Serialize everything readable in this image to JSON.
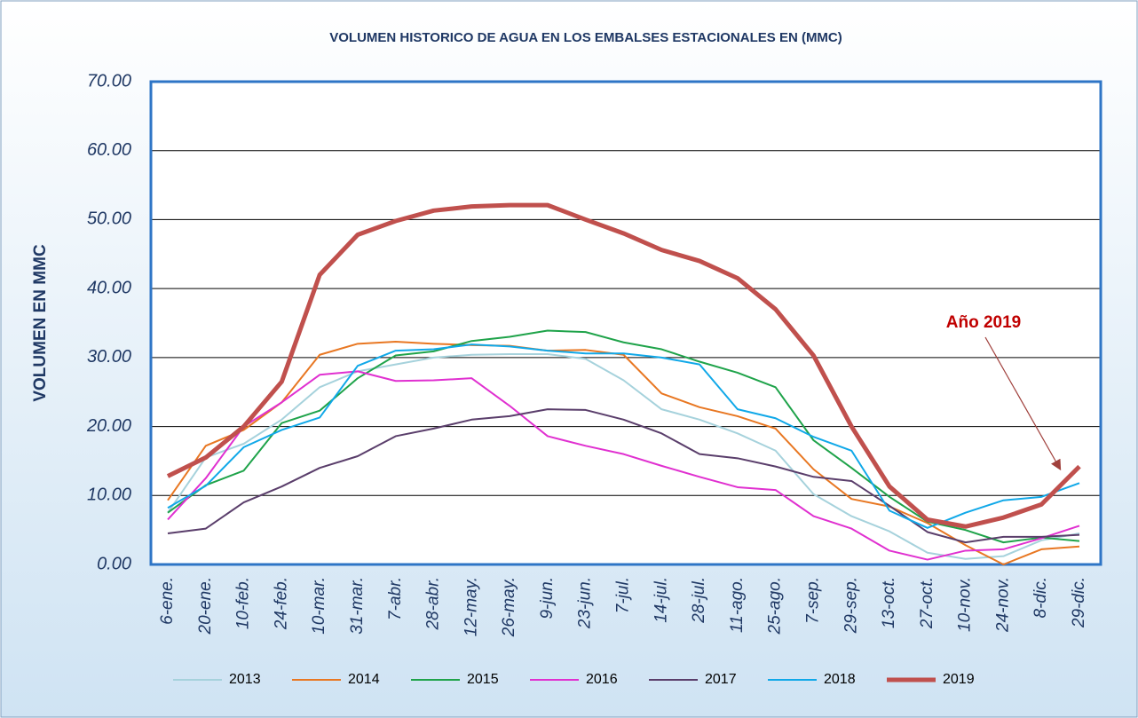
{
  "chart_data": {
    "type": "line",
    "title": "VOLUMEN HISTORICO DE AGUA EN LOS EMBALSES ESTACIONALES EN (MMC)",
    "y_label": "VOLUMEN EN MMC",
    "annotation": "Año 2019",
    "categories": [
      "6-ene.",
      "20-ene.",
      "10-feb.",
      "24-feb.",
      "10-mar.",
      "31-mar.",
      "7-abr.",
      "28-abr.",
      "12-may.",
      "26-may.",
      "9-jun.",
      "23-jun.",
      "7-jul.",
      "14-jul.",
      "28-jul.",
      "11-ago.",
      "25-ago.",
      "7-sep.",
      "29-sep.",
      "13-oct.",
      "27-oct.",
      "10-nov.",
      "24-nov.",
      "8-dic.",
      "29-dic."
    ],
    "ylim": [
      0,
      70
    ],
    "yticks": [
      {
        "value": 0,
        "label": "0.00"
      },
      {
        "value": 10,
        "label": "10.00"
      },
      {
        "value": 20,
        "label": "20.00"
      },
      {
        "value": 30,
        "label": "30.00"
      },
      {
        "value": 40,
        "label": "40.00"
      },
      {
        "value": 50,
        "label": "50.00"
      },
      {
        "value": 60,
        "label": "60.00"
      },
      {
        "value": 70,
        "label": "70.00"
      }
    ],
    "grid": true,
    "legend": "bottom",
    "series": [
      {
        "name": "2013",
        "color": "#a6d2dc",
        "line_width": 2,
        "values": [
          7.5,
          15.5,
          17.5,
          21,
          25.7,
          28,
          29,
          30,
          30.4,
          30.5,
          30.5,
          29.8,
          26.7,
          22.5,
          21,
          19,
          16.5,
          10.2,
          7,
          4.8,
          1.7,
          0.8,
          1.2,
          3.5,
          4.5
        ]
      },
      {
        "name": "2014",
        "color": "#e87722",
        "line_width": 2,
        "values": [
          9.3,
          17.2,
          19.5,
          23.5,
          30.4,
          32,
          32.3,
          32,
          31.8,
          31.7,
          31,
          31.1,
          30.4,
          24.8,
          22.8,
          21.5,
          19.7,
          13.8,
          9.5,
          8.4,
          6,
          2.8,
          0,
          2.2,
          2.6
        ]
      },
      {
        "name": "2015",
        "color": "#1fa34a",
        "line_width": 2,
        "values": [
          7.5,
          11.5,
          13.6,
          20.5,
          22.3,
          27,
          30.3,
          30.9,
          32.4,
          33,
          33.9,
          33.7,
          32.2,
          31.2,
          29.4,
          27.8,
          25.7,
          18,
          14,
          9.8,
          6.2,
          5,
          3.2,
          3.9,
          3.4
        ]
      },
      {
        "name": "2016",
        "color": "#e030d0",
        "line_width": 2,
        "values": [
          6.5,
          12.5,
          20,
          23.5,
          27.5,
          28,
          26.6,
          26.7,
          27,
          23,
          18.6,
          17.2,
          16,
          14.3,
          12.7,
          11.2,
          10.8,
          7,
          5.2,
          2,
          0.7,
          2,
          2.2,
          3.8,
          5.6
        ]
      },
      {
        "name": "2017",
        "color": "#5a3e6b",
        "line_width": 2,
        "values": [
          4.5,
          5.2,
          9,
          11.3,
          14,
          15.7,
          18.6,
          19.7,
          21,
          21.5,
          22.5,
          22.4,
          21,
          19,
          16,
          15.4,
          14.2,
          12.7,
          12.1,
          8.5,
          4.7,
          3.2,
          4,
          4,
          4.3
        ]
      },
      {
        "name": "2018",
        "color": "#10a8e8",
        "line_width": 2,
        "values": [
          8.2,
          11.4,
          17,
          19.5,
          21.3,
          28.8,
          31,
          31.2,
          31.9,
          31.6,
          31,
          30.6,
          30.6,
          30,
          29,
          22.5,
          21.2,
          18.5,
          16.5,
          7.8,
          5.3,
          7.5,
          9.3,
          9.8,
          11.8
        ]
      },
      {
        "name": "2019",
        "color": "#c0504d",
        "line_width": 5,
        "values": [
          12.8,
          15.5,
          20,
          26.5,
          42,
          47.8,
          49.8,
          51.3,
          51.9,
          52.1,
          52.1,
          50,
          48,
          45.6,
          44,
          41.5,
          37,
          30.3,
          20,
          11.3,
          6.5,
          5.5,
          6.8,
          8.7,
          14.2
        ]
      }
    ]
  }
}
